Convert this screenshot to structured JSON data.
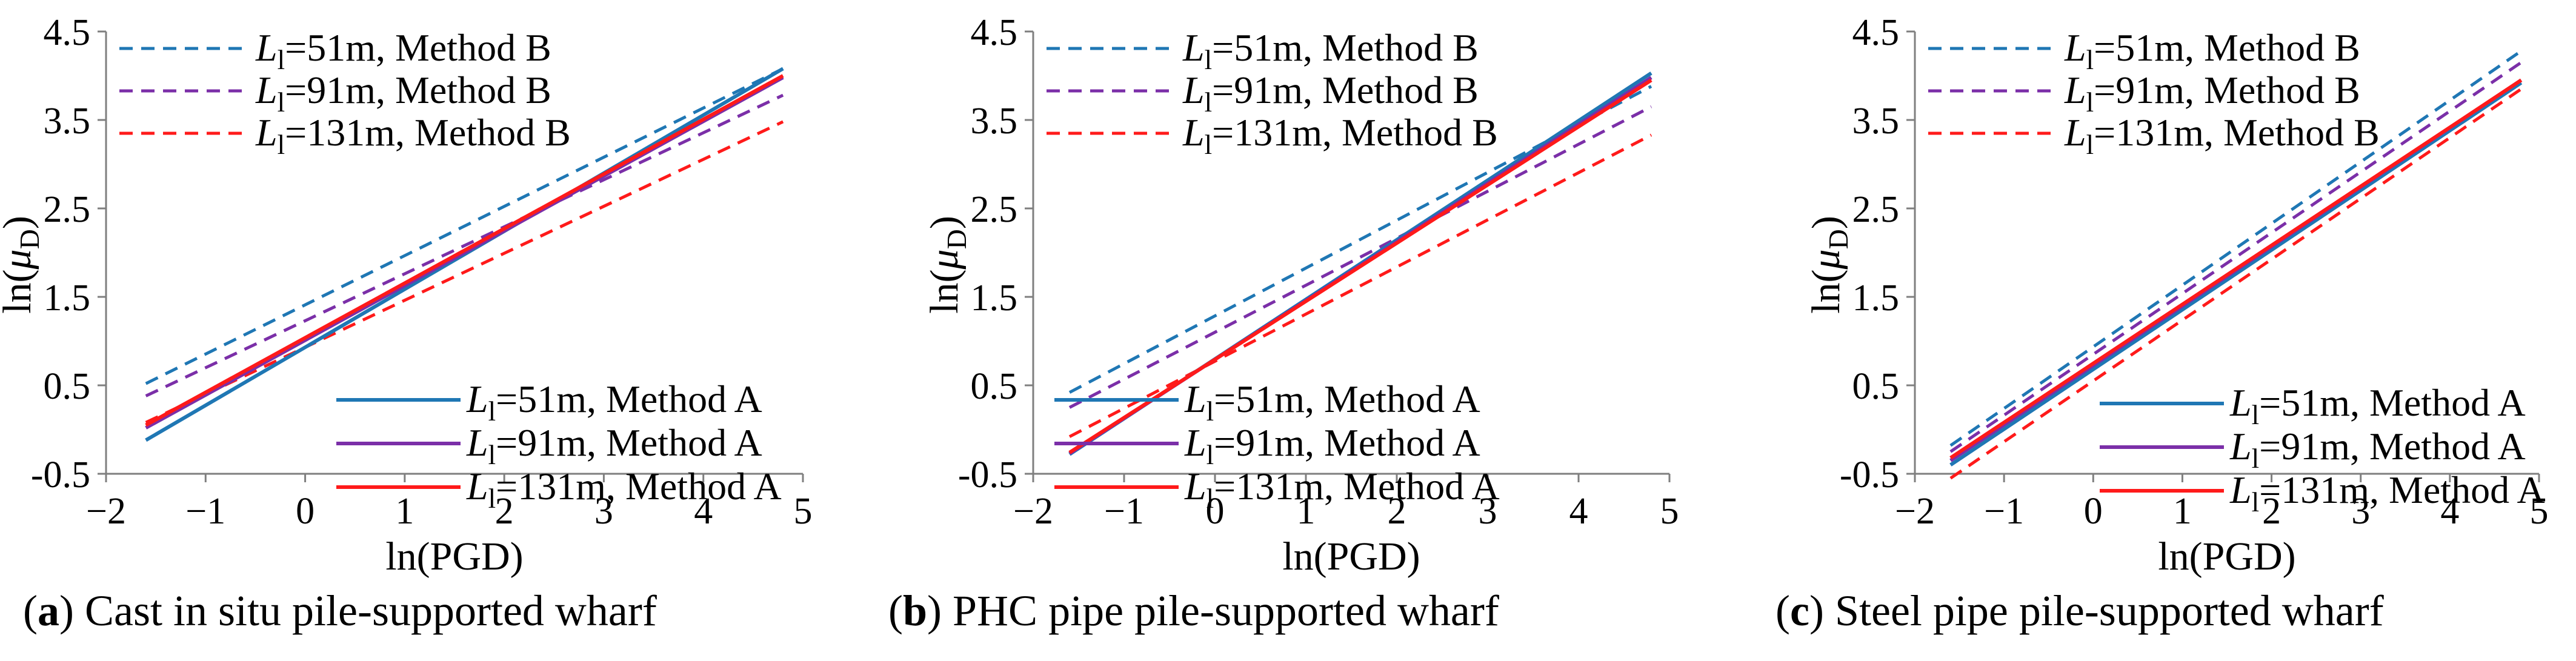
{
  "colors": {
    "L51": "#1f77b4",
    "L91": "#7b2fa8",
    "L131": "#ff1a1a",
    "axis": "#7f7f7f"
  },
  "legend": {
    "lm_sub": "l",
    "prefix": "L",
    "method_b": [
      {
        "key": "L51",
        "text": "=51m, Method B"
      },
      {
        "key": "L91",
        "text": "=91m, Method B"
      },
      {
        "key": "L131",
        "text": "=131m, Method B"
      }
    ],
    "method_a": [
      {
        "key": "L51",
        "text": "=51m, Method A"
      },
      {
        "key": "L91",
        "text": "=91m, Method A"
      },
      {
        "key": "L131",
        "text": "=131m, Method A"
      }
    ]
  },
  "chart_data": [
    {
      "type": "line",
      "panel_label": "a",
      "caption": "Cast in situ pile-supported wharf",
      "xlabel": "ln(PGD)",
      "ylabel_main": "ln(",
      "ylabel_mu": "μ",
      "ylabel_sub": "D",
      "ylabel_close": ")",
      "xlim": [
        -2,
        5
      ],
      "ylim": [
        -0.5,
        4.5
      ],
      "xticks": [
        -2,
        -1,
        0,
        1,
        2,
        3,
        4,
        5
      ],
      "xtick_labels": [
        "−2",
        "−1",
        "0",
        "1",
        "2",
        "3",
        "4",
        "5"
      ],
      "yticks": [
        -0.5,
        0.5,
        1.5,
        2.5,
        3.5,
        4.5
      ],
      "ytick_labels": [
        "-0.5",
        "0.5",
        "1.5",
        "2.5",
        "3.5",
        "4.5"
      ],
      "series": [
        {
          "name": "L=51m, Method B",
          "key": "L51",
          "dash": true,
          "x": [
            -1.6,
            4.8
          ],
          "y": [
            0.52,
            4.08
          ]
        },
        {
          "name": "L=91m, Method B",
          "key": "L91",
          "dash": true,
          "x": [
            -1.6,
            4.8
          ],
          "y": [
            0.38,
            3.78
          ]
        },
        {
          "name": "L=131m, Method B",
          "key": "L131",
          "dash": true,
          "x": [
            -1.6,
            4.8
          ],
          "y": [
            0.08,
            3.48
          ]
        },
        {
          "name": "L=51m, Method A",
          "key": "L51",
          "dash": false,
          "x": [
            -1.6,
            4.8
          ],
          "y": [
            -0.12,
            4.08
          ]
        },
        {
          "name": "L=91m, Method A",
          "key": "L91",
          "dash": false,
          "x": [
            -1.6,
            4.8
          ],
          "y": [
            0.02,
            3.98
          ]
        },
        {
          "name": "L=131m, Method A",
          "key": "L131",
          "dash": false,
          "x": [
            -1.6,
            4.8
          ],
          "y": [
            0.05,
            4.0
          ]
        }
      ]
    },
    {
      "type": "line",
      "panel_label": "b",
      "caption": "PHC pipe pile-supported wharf",
      "xlabel": "ln(PGD)",
      "ylabel_main": "ln(",
      "ylabel_mu": "μ",
      "ylabel_sub": "D",
      "ylabel_close": ")",
      "xlim": [
        -2,
        5
      ],
      "ylim": [
        -0.5,
        4.5
      ],
      "xticks": [
        -2,
        -1,
        0,
        1,
        2,
        3,
        4,
        5
      ],
      "xtick_labels": [
        "−2",
        "−1",
        "0",
        "1",
        "2",
        "3",
        "4",
        "5"
      ],
      "yticks": [
        -0.5,
        0.5,
        1.5,
        2.5,
        3.5,
        4.5
      ],
      "ytick_labels": [
        "-0.5",
        "0.5",
        "1.5",
        "2.5",
        "3.5",
        "4.5"
      ],
      "series": [
        {
          "name": "L=51m, Method B",
          "key": "L51",
          "dash": true,
          "x": [
            -1.6,
            4.8
          ],
          "y": [
            0.42,
            3.88
          ]
        },
        {
          "name": "L=91m, Method B",
          "key": "L91",
          "dash": true,
          "x": [
            -1.6,
            4.8
          ],
          "y": [
            0.25,
            3.65
          ]
        },
        {
          "name": "L=131m, Method B",
          "key": "L131",
          "dash": true,
          "x": [
            -1.6,
            4.8
          ],
          "y": [
            -0.08,
            3.33
          ]
        },
        {
          "name": "L=51m, Method A",
          "key": "L51",
          "dash": false,
          "x": [
            -1.6,
            4.8
          ],
          "y": [
            -0.28,
            4.03
          ]
        },
        {
          "name": "L=91m, Method A",
          "key": "L91",
          "dash": false,
          "x": [
            -1.6,
            4.8
          ],
          "y": [
            -0.27,
            3.98
          ]
        },
        {
          "name": "L=131m, Method A",
          "key": "L131",
          "dash": false,
          "x": [
            -1.6,
            4.8
          ],
          "y": [
            -0.26,
            3.95
          ]
        }
      ]
    },
    {
      "type": "line",
      "panel_label": "c",
      "caption": "Steel pipe pile-supported wharf",
      "xlabel": "ln(PGD)",
      "ylabel_main": "ln(",
      "ylabel_mu": "μ",
      "ylabel_sub": "D",
      "ylabel_close": ")",
      "xlim": [
        -2,
        5
      ],
      "ylim": [
        -0.5,
        4.5
      ],
      "xticks": [
        -2,
        -1,
        0,
        1,
        2,
        3,
        4,
        5
      ],
      "xtick_labels": [
        "−2",
        "−1",
        "0",
        "1",
        "2",
        "3",
        "4",
        "5"
      ],
      "yticks": [
        -0.5,
        0.5,
        1.5,
        2.5,
        3.5,
        4.5
      ],
      "ytick_labels": [
        "-0.5",
        "0.5",
        "1.5",
        "2.5",
        "3.5",
        "4.5"
      ],
      "series": [
        {
          "name": "L=51m, Method B",
          "key": "L51",
          "dash": true,
          "x": [
            -1.6,
            4.8
          ],
          "y": [
            -0.18,
            4.28
          ]
        },
        {
          "name": "L=91m, Method B",
          "key": "L91",
          "dash": true,
          "x": [
            -1.6,
            4.8
          ],
          "y": [
            -0.25,
            4.15
          ]
        },
        {
          "name": "L=131m, Method B",
          "key": "L131",
          "dash": true,
          "x": [
            -1.6,
            4.8
          ],
          "y": [
            -0.55,
            3.85
          ]
        },
        {
          "name": "L=51m, Method A",
          "key": "L51",
          "dash": false,
          "x": [
            -1.6,
            4.8
          ],
          "y": [
            -0.4,
            3.92
          ]
        },
        {
          "name": "L=91m, Method A",
          "key": "L91",
          "dash": false,
          "x": [
            -1.6,
            4.8
          ],
          "y": [
            -0.35,
            3.95
          ]
        },
        {
          "name": "L=131m, Method A",
          "key": "L131",
          "dash": false,
          "x": [
            -1.6,
            4.8
          ],
          "y": [
            -0.32,
            3.95
          ]
        }
      ]
    }
  ]
}
